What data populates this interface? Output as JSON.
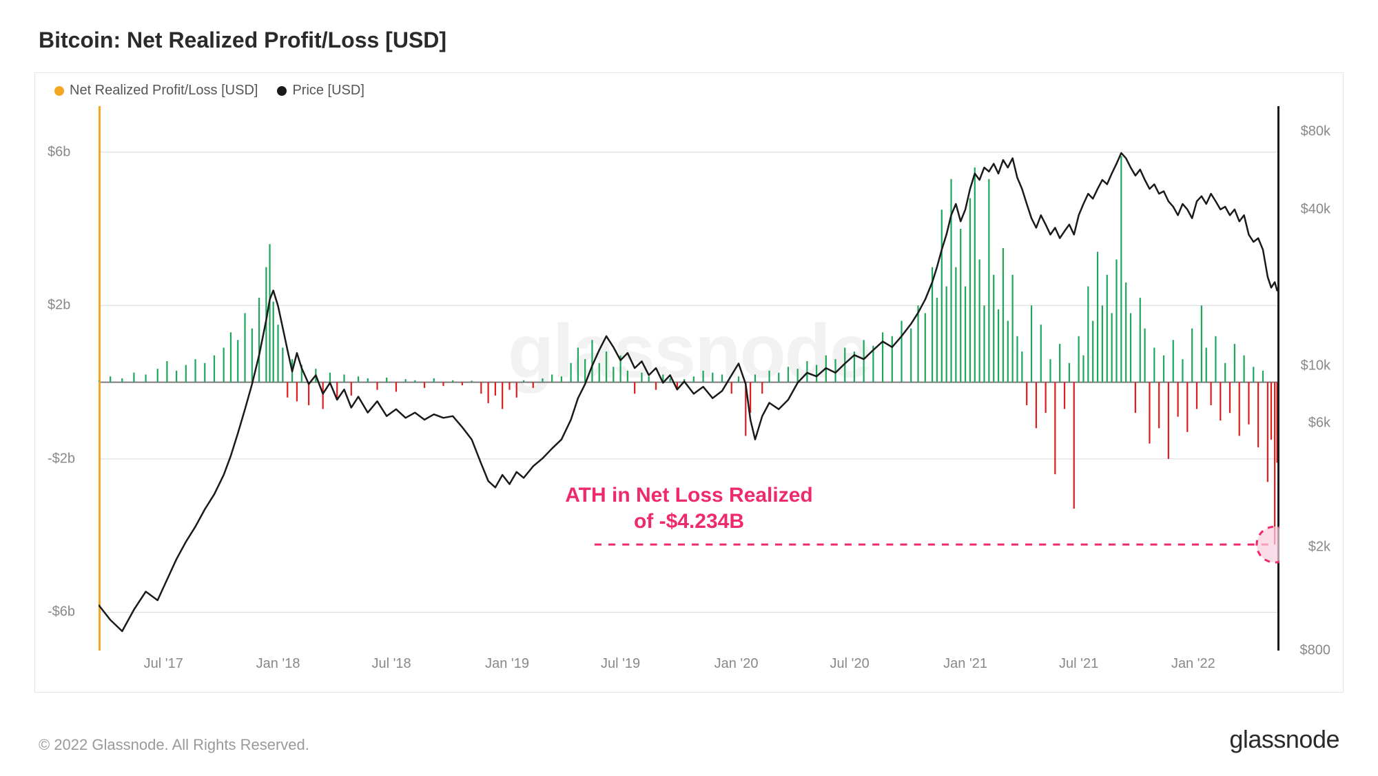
{
  "title": "Bitcoin: Net Realized Profit/Loss [USD]",
  "legend": {
    "series1": {
      "label": "Net Realized Profit/Loss [USD]",
      "color": "#f5a623"
    },
    "series2": {
      "label": "Price [USD]",
      "color": "#1a1a1a"
    }
  },
  "watermark": "glassnode",
  "copyright": "© 2022 Glassnode. All Rights Reserved.",
  "brand": "glassnode",
  "annotation": {
    "line1": "ATH in Net Loss Realized",
    "line2": "of -$4.234B",
    "color": "#ef2a6b",
    "dash_y_value": -4.234,
    "circle_fill": "#f9cfe0"
  },
  "chart": {
    "type": "dual-axis-combo",
    "background_color": "#ffffff",
    "grid_color": "#d8d8d8",
    "zero_line_color": "#7a7a7a",
    "x_range_dates": [
      "2017-04",
      "2022-06"
    ],
    "x_ticks": [
      {
        "pos": 0.055,
        "label": "Jul '17"
      },
      {
        "pos": 0.152,
        "label": "Jan '18"
      },
      {
        "pos": 0.248,
        "label": "Jul '18"
      },
      {
        "pos": 0.346,
        "label": "Jan '19"
      },
      {
        "pos": 0.442,
        "label": "Jul '19"
      },
      {
        "pos": 0.54,
        "label": "Jan '20"
      },
      {
        "pos": 0.636,
        "label": "Jul '20"
      },
      {
        "pos": 0.734,
        "label": "Jan '21"
      },
      {
        "pos": 0.83,
        "label": "Jul '21"
      },
      {
        "pos": 0.927,
        "label": "Jan '22"
      }
    ],
    "left_axis": {
      "scale": "linear",
      "min": -7,
      "max": 7.2,
      "ticks": [
        {
          "v": 6,
          "label": "$6b"
        },
        {
          "v": 2,
          "label": "$2b"
        },
        {
          "v": -2,
          "label": "-$2b"
        },
        {
          "v": -6,
          "label": "-$6b"
        }
      ],
      "profit_color": "#1fa65a",
      "loss_color": "#e21b1b"
    },
    "right_axis": {
      "scale": "log",
      "min": 800,
      "max": 100000,
      "ticks": [
        {
          "v": 80000,
          "label": "$80k"
        },
        {
          "v": 40000,
          "label": "$40k"
        },
        {
          "v": 10000,
          "label": "$10k"
        },
        {
          "v": 6000,
          "label": "$6k"
        },
        {
          "v": 2000,
          "label": "$2k"
        },
        {
          "v": 800,
          "label": "$800"
        }
      ],
      "line_color": "#1a1a1a",
      "line_width": 2.5
    },
    "orange_marker": {
      "x": 0.0,
      "color": "#f5a623"
    },
    "net_pl_series": [
      [
        0.0,
        0.05
      ],
      [
        0.01,
        0.15
      ],
      [
        0.02,
        0.1
      ],
      [
        0.03,
        0.25
      ],
      [
        0.04,
        0.2
      ],
      [
        0.05,
        0.35
      ],
      [
        0.058,
        0.55
      ],
      [
        0.066,
        0.3
      ],
      [
        0.074,
        0.45
      ],
      [
        0.082,
        0.6
      ],
      [
        0.09,
        0.5
      ],
      [
        0.098,
        0.7
      ],
      [
        0.106,
        0.9
      ],
      [
        0.112,
        1.3
      ],
      [
        0.118,
        1.1
      ],
      [
        0.124,
        1.8
      ],
      [
        0.13,
        1.4
      ],
      [
        0.136,
        2.2
      ],
      [
        0.142,
        3.0
      ],
      [
        0.145,
        3.6
      ],
      [
        0.148,
        2.1
      ],
      [
        0.152,
        1.5
      ],
      [
        0.156,
        0.9
      ],
      [
        0.16,
        -0.4
      ],
      [
        0.164,
        0.6
      ],
      [
        0.168,
        -0.5
      ],
      [
        0.172,
        0.45
      ],
      [
        0.178,
        -0.6
      ],
      [
        0.184,
        0.35
      ],
      [
        0.19,
        -0.7
      ],
      [
        0.196,
        0.25
      ],
      [
        0.202,
        -0.45
      ],
      [
        0.208,
        0.2
      ],
      [
        0.214,
        -0.35
      ],
      [
        0.22,
        0.15
      ],
      [
        0.228,
        0.1
      ],
      [
        0.236,
        -0.2
      ],
      [
        0.244,
        0.12
      ],
      [
        0.252,
        -0.25
      ],
      [
        0.26,
        0.08
      ],
      [
        0.268,
        0.05
      ],
      [
        0.276,
        -0.15
      ],
      [
        0.284,
        0.1
      ],
      [
        0.292,
        -0.1
      ],
      [
        0.3,
        0.05
      ],
      [
        0.308,
        -0.08
      ],
      [
        0.316,
        0.04
      ],
      [
        0.324,
        -0.3
      ],
      [
        0.33,
        -0.55
      ],
      [
        0.336,
        -0.35
      ],
      [
        0.342,
        -0.7
      ],
      [
        0.348,
        -0.2
      ],
      [
        0.354,
        -0.4
      ],
      [
        0.36,
        0.05
      ],
      [
        0.368,
        -0.15
      ],
      [
        0.376,
        0.1
      ],
      [
        0.384,
        0.2
      ],
      [
        0.392,
        0.15
      ],
      [
        0.4,
        0.5
      ],
      [
        0.406,
        0.9
      ],
      [
        0.412,
        0.6
      ],
      [
        0.418,
        1.1
      ],
      [
        0.424,
        0.5
      ],
      [
        0.43,
        0.8
      ],
      [
        0.436,
        0.4
      ],
      [
        0.442,
        0.7
      ],
      [
        0.448,
        0.3
      ],
      [
        0.454,
        -0.3
      ],
      [
        0.46,
        0.25
      ],
      [
        0.466,
        0.15
      ],
      [
        0.472,
        -0.2
      ],
      [
        0.478,
        0.2
      ],
      [
        0.484,
        0.1
      ],
      [
        0.49,
        -0.15
      ],
      [
        0.496,
        0.08
      ],
      [
        0.504,
        0.15
      ],
      [
        0.512,
        0.3
      ],
      [
        0.52,
        0.25
      ],
      [
        0.528,
        0.2
      ],
      [
        0.536,
        -0.3
      ],
      [
        0.542,
        0.15
      ],
      [
        0.548,
        -1.4
      ],
      [
        0.552,
        -0.8
      ],
      [
        0.556,
        0.2
      ],
      [
        0.562,
        -0.3
      ],
      [
        0.568,
        0.3
      ],
      [
        0.576,
        0.25
      ],
      [
        0.584,
        0.4
      ],
      [
        0.592,
        0.35
      ],
      [
        0.6,
        0.55
      ],
      [
        0.608,
        0.45
      ],
      [
        0.616,
        0.7
      ],
      [
        0.624,
        0.6
      ],
      [
        0.632,
        0.9
      ],
      [
        0.64,
        0.8
      ],
      [
        0.648,
        1.1
      ],
      [
        0.656,
        0.95
      ],
      [
        0.664,
        1.3
      ],
      [
        0.672,
        1.2
      ],
      [
        0.68,
        1.6
      ],
      [
        0.688,
        1.4
      ],
      [
        0.694,
        2.0
      ],
      [
        0.7,
        1.8
      ],
      [
        0.706,
        3.0
      ],
      [
        0.71,
        2.2
      ],
      [
        0.714,
        4.5
      ],
      [
        0.718,
        2.5
      ],
      [
        0.722,
        5.3
      ],
      [
        0.726,
        3.0
      ],
      [
        0.73,
        4.0
      ],
      [
        0.734,
        2.5
      ],
      [
        0.738,
        4.8
      ],
      [
        0.742,
        5.6
      ],
      [
        0.746,
        3.2
      ],
      [
        0.75,
        2.0
      ],
      [
        0.754,
        5.3
      ],
      [
        0.758,
        2.8
      ],
      [
        0.762,
        1.9
      ],
      [
        0.766,
        3.5
      ],
      [
        0.77,
        1.6
      ],
      [
        0.774,
        2.8
      ],
      [
        0.778,
        1.2
      ],
      [
        0.782,
        0.8
      ],
      [
        0.786,
        -0.6
      ],
      [
        0.79,
        2.0
      ],
      [
        0.794,
        -1.2
      ],
      [
        0.798,
        1.5
      ],
      [
        0.802,
        -0.8
      ],
      [
        0.806,
        0.6
      ],
      [
        0.81,
        -2.4
      ],
      [
        0.814,
        1.0
      ],
      [
        0.818,
        -0.7
      ],
      [
        0.822,
        0.5
      ],
      [
        0.826,
        -3.3
      ],
      [
        0.83,
        1.2
      ],
      [
        0.834,
        0.7
      ],
      [
        0.838,
        2.5
      ],
      [
        0.842,
        1.6
      ],
      [
        0.846,
        3.4
      ],
      [
        0.85,
        2.0
      ],
      [
        0.854,
        2.8
      ],
      [
        0.858,
        1.8
      ],
      [
        0.862,
        3.2
      ],
      [
        0.866,
        5.9
      ],
      [
        0.87,
        2.6
      ],
      [
        0.874,
        1.8
      ],
      [
        0.878,
        -0.8
      ],
      [
        0.882,
        2.2
      ],
      [
        0.886,
        1.4
      ],
      [
        0.89,
        -1.6
      ],
      [
        0.894,
        0.9
      ],
      [
        0.898,
        -1.2
      ],
      [
        0.902,
        0.7
      ],
      [
        0.906,
        -2.0
      ],
      [
        0.91,
        1.1
      ],
      [
        0.914,
        -0.9
      ],
      [
        0.918,
        0.6
      ],
      [
        0.922,
        -1.3
      ],
      [
        0.926,
        1.4
      ],
      [
        0.93,
        -0.7
      ],
      [
        0.934,
        2.0
      ],
      [
        0.938,
        0.9
      ],
      [
        0.942,
        -0.6
      ],
      [
        0.946,
        1.2
      ],
      [
        0.95,
        -1.0
      ],
      [
        0.954,
        0.5
      ],
      [
        0.958,
        -0.8
      ],
      [
        0.962,
        1.0
      ],
      [
        0.966,
        -1.4
      ],
      [
        0.97,
        0.7
      ],
      [
        0.974,
        -1.1
      ],
      [
        0.978,
        0.4
      ],
      [
        0.982,
        -1.7
      ],
      [
        0.986,
        0.3
      ],
      [
        0.99,
        -2.6
      ],
      [
        0.993,
        -1.5
      ],
      [
        0.996,
        -4.234
      ],
      [
        0.998,
        -2.1
      ],
      [
        1.0,
        -1.0
      ]
    ],
    "price_series": [
      [
        0.0,
        1200
      ],
      [
        0.01,
        1050
      ],
      [
        0.02,
        950
      ],
      [
        0.03,
        1150
      ],
      [
        0.04,
        1350
      ],
      [
        0.05,
        1250
      ],
      [
        0.058,
        1500
      ],
      [
        0.066,
        1800
      ],
      [
        0.074,
        2100
      ],
      [
        0.082,
        2400
      ],
      [
        0.09,
        2800
      ],
      [
        0.098,
        3200
      ],
      [
        0.106,
        3800
      ],
      [
        0.112,
        4500
      ],
      [
        0.118,
        5500
      ],
      [
        0.124,
        6800
      ],
      [
        0.13,
        8500
      ],
      [
        0.136,
        11000
      ],
      [
        0.142,
        15000
      ],
      [
        0.145,
        18000
      ],
      [
        0.148,
        19500
      ],
      [
        0.152,
        17000
      ],
      [
        0.156,
        14000
      ],
      [
        0.16,
        11500
      ],
      [
        0.164,
        9500
      ],
      [
        0.168,
        11200
      ],
      [
        0.172,
        9800
      ],
      [
        0.178,
        8500
      ],
      [
        0.184,
        9200
      ],
      [
        0.19,
        7800
      ],
      [
        0.196,
        8600
      ],
      [
        0.202,
        7400
      ],
      [
        0.208,
        8100
      ],
      [
        0.214,
        6900
      ],
      [
        0.22,
        7600
      ],
      [
        0.228,
        6600
      ],
      [
        0.236,
        7300
      ],
      [
        0.244,
        6400
      ],
      [
        0.252,
        6800
      ],
      [
        0.26,
        6300
      ],
      [
        0.268,
        6600
      ],
      [
        0.276,
        6200
      ],
      [
        0.284,
        6500
      ],
      [
        0.292,
        6300
      ],
      [
        0.3,
        6400
      ],
      [
        0.308,
        5800
      ],
      [
        0.316,
        5200
      ],
      [
        0.324,
        4200
      ],
      [
        0.33,
        3600
      ],
      [
        0.336,
        3400
      ],
      [
        0.342,
        3800
      ],
      [
        0.348,
        3500
      ],
      [
        0.354,
        3900
      ],
      [
        0.36,
        3700
      ],
      [
        0.368,
        4100
      ],
      [
        0.376,
        4400
      ],
      [
        0.384,
        4800
      ],
      [
        0.392,
        5200
      ],
      [
        0.4,
        6200
      ],
      [
        0.406,
        7500
      ],
      [
        0.412,
        8500
      ],
      [
        0.418,
        10000
      ],
      [
        0.424,
        11500
      ],
      [
        0.43,
        13000
      ],
      [
        0.436,
        11800
      ],
      [
        0.442,
        10500
      ],
      [
        0.448,
        11200
      ],
      [
        0.454,
        9800
      ],
      [
        0.46,
        10400
      ],
      [
        0.466,
        9200
      ],
      [
        0.472,
        9800
      ],
      [
        0.478,
        8600
      ],
      [
        0.484,
        9200
      ],
      [
        0.49,
        8100
      ],
      [
        0.496,
        8700
      ],
      [
        0.504,
        7800
      ],
      [
        0.512,
        8300
      ],
      [
        0.52,
        7500
      ],
      [
        0.528,
        8000
      ],
      [
        0.536,
        9200
      ],
      [
        0.542,
        10200
      ],
      [
        0.548,
        8500
      ],
      [
        0.552,
        6200
      ],
      [
        0.556,
        5200
      ],
      [
        0.562,
        6400
      ],
      [
        0.568,
        7200
      ],
      [
        0.576,
        6800
      ],
      [
        0.584,
        7400
      ],
      [
        0.592,
        8600
      ],
      [
        0.6,
        9400
      ],
      [
        0.608,
        9100
      ],
      [
        0.616,
        9800
      ],
      [
        0.624,
        9400
      ],
      [
        0.632,
        10200
      ],
      [
        0.64,
        11000
      ],
      [
        0.648,
        10600
      ],
      [
        0.656,
        11500
      ],
      [
        0.664,
        12400
      ],
      [
        0.672,
        11800
      ],
      [
        0.68,
        13000
      ],
      [
        0.688,
        14500
      ],
      [
        0.694,
        16000
      ],
      [
        0.7,
        18000
      ],
      [
        0.706,
        21000
      ],
      [
        0.71,
        24000
      ],
      [
        0.714,
        28000
      ],
      [
        0.718,
        32000
      ],
      [
        0.722,
        38000
      ],
      [
        0.726,
        42000
      ],
      [
        0.73,
        36000
      ],
      [
        0.734,
        40000
      ],
      [
        0.738,
        48000
      ],
      [
        0.742,
        55000
      ],
      [
        0.746,
        52000
      ],
      [
        0.75,
        58000
      ],
      [
        0.754,
        56000
      ],
      [
        0.758,
        60000
      ],
      [
        0.762,
        55000
      ],
      [
        0.766,
        62000
      ],
      [
        0.77,
        58000
      ],
      [
        0.774,
        63000
      ],
      [
        0.778,
        53000
      ],
      [
        0.782,
        48000
      ],
      [
        0.786,
        42000
      ],
      [
        0.79,
        37000
      ],
      [
        0.794,
        34000
      ],
      [
        0.798,
        38000
      ],
      [
        0.802,
        35000
      ],
      [
        0.806,
        32000
      ],
      [
        0.81,
        34000
      ],
      [
        0.814,
        31000
      ],
      [
        0.818,
        33000
      ],
      [
        0.822,
        35000
      ],
      [
        0.826,
        32000
      ],
      [
        0.83,
        38000
      ],
      [
        0.834,
        42000
      ],
      [
        0.838,
        46000
      ],
      [
        0.842,
        44000
      ],
      [
        0.846,
        48000
      ],
      [
        0.85,
        52000
      ],
      [
        0.854,
        50000
      ],
      [
        0.858,
        55000
      ],
      [
        0.862,
        60000
      ],
      [
        0.866,
        66000
      ],
      [
        0.87,
        63000
      ],
      [
        0.874,
        58000
      ],
      [
        0.878,
        54000
      ],
      [
        0.882,
        57000
      ],
      [
        0.886,
        52000
      ],
      [
        0.89,
        48000
      ],
      [
        0.894,
        50000
      ],
      [
        0.898,
        46000
      ],
      [
        0.902,
        47000
      ],
      [
        0.906,
        43000
      ],
      [
        0.91,
        41000
      ],
      [
        0.914,
        38000
      ],
      [
        0.918,
        42000
      ],
      [
        0.922,
        40000
      ],
      [
        0.926,
        37000
      ],
      [
        0.93,
        43000
      ],
      [
        0.934,
        45000
      ],
      [
        0.938,
        42000
      ],
      [
        0.942,
        46000
      ],
      [
        0.946,
        43000
      ],
      [
        0.95,
        40000
      ],
      [
        0.954,
        41000
      ],
      [
        0.958,
        38000
      ],
      [
        0.962,
        40000
      ],
      [
        0.966,
        36000
      ],
      [
        0.97,
        38000
      ],
      [
        0.974,
        32000
      ],
      [
        0.978,
        30000
      ],
      [
        0.982,
        31000
      ],
      [
        0.986,
        28000
      ],
      [
        0.99,
        22000
      ],
      [
        0.993,
        20000
      ],
      [
        0.996,
        21000
      ],
      [
        0.998,
        19500
      ],
      [
        1.0,
        20500
      ]
    ]
  }
}
